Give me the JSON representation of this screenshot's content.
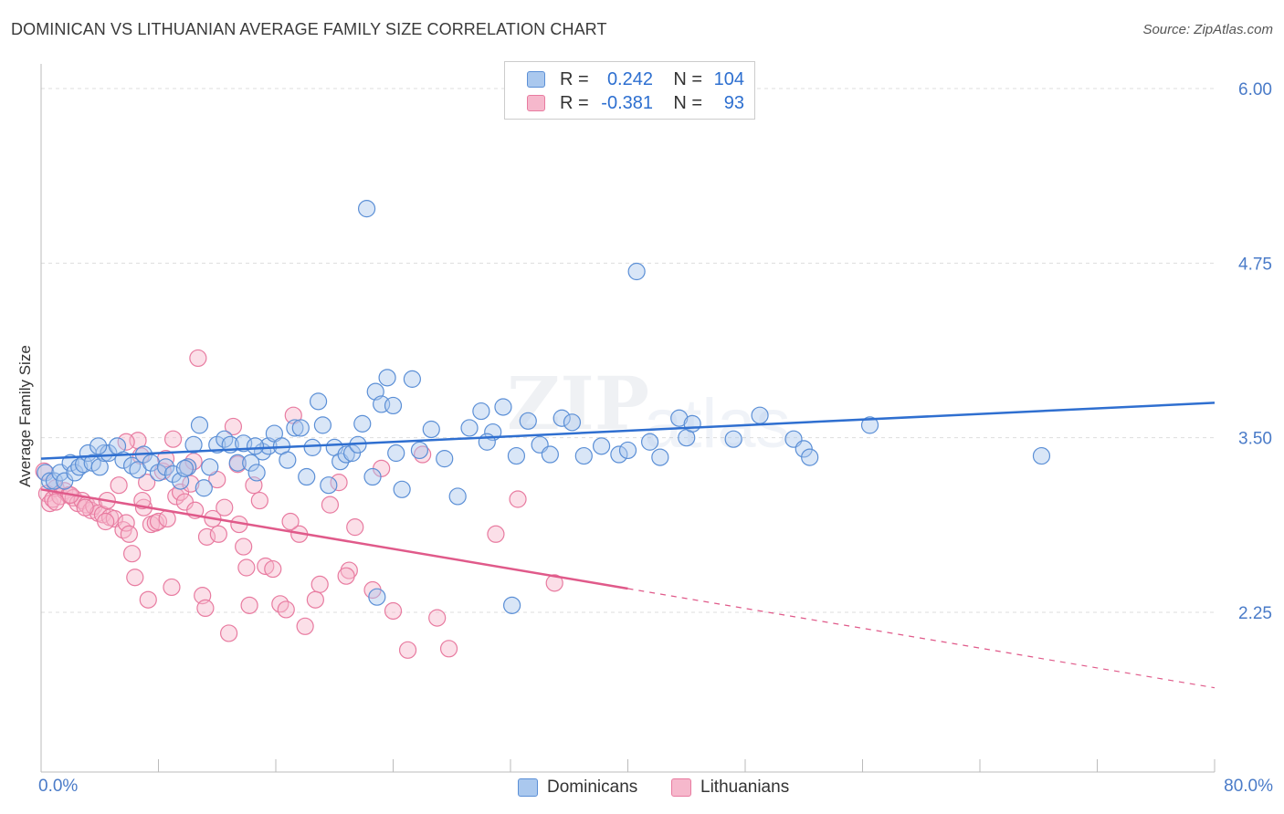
{
  "title": "DOMINICAN VS LITHUANIAN AVERAGE FAMILY SIZE CORRELATION CHART",
  "source": "Source: ZipAtlas.com",
  "colors": {
    "dominicans_fill": "#aac8ee",
    "dominicans_stroke": "#5b8fd6",
    "dominicans_line": "#2f6fd0",
    "lithuanians_fill": "#f6b8cc",
    "lithuanians_stroke": "#e87ba0",
    "lithuanians_line": "#e05a8a",
    "tick_label": "#4a7bc8"
  },
  "legend": {
    "rows": [
      {
        "r_label": "R =",
        "r_value": "0.242",
        "n_label": "N =",
        "n_value": "104"
      },
      {
        "r_label": "R =",
        "r_value": "-0.381",
        "n_label": "N =",
        "n_value": "93"
      }
    ]
  },
  "chart_data": {
    "type": "scatter",
    "title": "DOMINICAN VS LITHUANIAN AVERAGE FAMILY SIZE CORRELATION CHART",
    "xlabel": "",
    "ylabel": "Average Family Size",
    "x_tick_labels": [
      "0.0%",
      "80.0%"
    ],
    "y_tick_labels": [
      "2.25",
      "3.50",
      "4.75",
      "6.00"
    ],
    "y_ticks": [
      2.25,
      3.5,
      4.75,
      6.0
    ],
    "xlim": [
      0,
      80
    ],
    "ylim": [
      1.0,
      6.1
    ],
    "grid": true,
    "legend_position": "top-center",
    "series": [
      {
        "name": "Dominicans",
        "stats": {
          "R": 0.242,
          "N": 104
        },
        "trend": {
          "x0": 0,
          "y0": 3.35,
          "x1": 80,
          "y1": 3.75,
          "solid_until": 80
        },
        "points": [
          [
            0.3,
            3.25
          ],
          [
            0.6,
            3.19
          ],
          [
            0.9,
            3.19
          ],
          [
            1.3,
            3.25
          ],
          [
            1.6,
            3.19
          ],
          [
            2.0,
            3.32
          ],
          [
            2.3,
            3.25
          ],
          [
            2.6,
            3.29
          ],
          [
            2.9,
            3.31
          ],
          [
            3.2,
            3.39
          ],
          [
            3.5,
            3.32
          ],
          [
            4.0,
            3.29
          ],
          [
            4.3,
            3.39
          ],
          [
            4.6,
            3.39
          ],
          [
            5.2,
            3.44
          ],
          [
            5.6,
            3.34
          ],
          [
            6.2,
            3.3
          ],
          [
            6.6,
            3.27
          ],
          [
            7.0,
            3.38
          ],
          [
            7.5,
            3.32
          ],
          [
            8.0,
            3.25
          ],
          [
            8.5,
            3.29
          ],
          [
            9.0,
            3.24
          ],
          [
            9.5,
            3.19
          ],
          [
            10.0,
            3.29
          ],
          [
            10.4,
            3.45
          ],
          [
            10.8,
            3.59
          ],
          [
            11.1,
            3.14
          ],
          [
            11.5,
            3.29
          ],
          [
            12.0,
            3.45
          ],
          [
            12.5,
            3.49
          ],
          [
            12.9,
            3.45
          ],
          [
            13.4,
            3.32
          ],
          [
            13.8,
            3.46
          ],
          [
            14.3,
            3.32
          ],
          [
            14.7,
            3.25
          ],
          [
            15.1,
            3.4
          ],
          [
            15.5,
            3.44
          ],
          [
            15.9,
            3.53
          ],
          [
            16.4,
            3.44
          ],
          [
            16.8,
            3.34
          ],
          [
            17.3,
            3.57
          ],
          [
            17.7,
            3.57
          ],
          [
            18.1,
            3.22
          ],
          [
            18.5,
            3.43
          ],
          [
            18.9,
            3.76
          ],
          [
            19.2,
            3.59
          ],
          [
            19.6,
            3.16
          ],
          [
            20.0,
            3.43
          ],
          [
            20.4,
            3.33
          ],
          [
            20.8,
            3.38
          ],
          [
            21.2,
            3.39
          ],
          [
            21.6,
            3.45
          ],
          [
            21.9,
            3.6
          ],
          [
            22.2,
            5.14
          ],
          [
            22.6,
            3.22
          ],
          [
            22.8,
            3.83
          ],
          [
            23.2,
            3.74
          ],
          [
            23.6,
            3.93
          ],
          [
            24.0,
            3.73
          ],
          [
            24.6,
            3.13
          ],
          [
            25.3,
            3.92
          ],
          [
            25.8,
            3.41
          ],
          [
            26.6,
            3.56
          ],
          [
            27.5,
            3.35
          ],
          [
            28.4,
            3.08
          ],
          [
            29.2,
            3.57
          ],
          [
            30.0,
            3.69
          ],
          [
            30.8,
            3.54
          ],
          [
            31.5,
            3.72
          ],
          [
            32.4,
            3.37
          ],
          [
            33.2,
            3.62
          ],
          [
            34.0,
            3.45
          ],
          [
            34.7,
            3.38
          ],
          [
            35.5,
            3.64
          ],
          [
            36.2,
            3.61
          ],
          [
            37.0,
            3.37
          ],
          [
            38.2,
            3.44
          ],
          [
            39.4,
            3.38
          ],
          [
            40.0,
            3.41
          ],
          [
            40.6,
            4.69
          ],
          [
            41.5,
            3.47
          ],
          [
            42.2,
            3.36
          ],
          [
            43.5,
            3.64
          ],
          [
            44.0,
            3.5
          ],
          [
            44.4,
            3.6
          ],
          [
            47.2,
            3.49
          ],
          [
            49.0,
            3.66
          ],
          [
            51.3,
            3.49
          ],
          [
            52.0,
            3.42
          ],
          [
            52.4,
            3.36
          ],
          [
            56.5,
            3.59
          ],
          [
            68.2,
            3.37
          ],
          [
            14.6,
            3.44
          ],
          [
            9.8,
            3.28
          ],
          [
            22.9,
            2.36
          ],
          [
            32.1,
            2.3
          ],
          [
            30.4,
            3.47
          ],
          [
            24.2,
            3.39
          ],
          [
            3.9,
            3.44
          ]
        ]
      },
      {
        "name": "Lithuanians",
        "stats": {
          "R": -0.381,
          "N": 93
        },
        "trend": {
          "x0": 0,
          "y0": 3.13,
          "x1": 80,
          "y1": 1.71,
          "solid_until": 40
        },
        "points": [
          [
            0.2,
            3.26
          ],
          [
            0.4,
            3.1
          ],
          [
            0.6,
            3.03
          ],
          [
            0.8,
            3.06
          ],
          [
            1.0,
            3.14
          ],
          [
            1.3,
            3.08
          ],
          [
            1.6,
            3.12
          ],
          [
            1.9,
            3.09
          ],
          [
            2.2,
            3.07
          ],
          [
            2.5,
            3.03
          ],
          [
            2.8,
            3.05
          ],
          [
            3.1,
            3.02
          ],
          [
            3.4,
            2.98
          ],
          [
            3.6,
            3.01
          ],
          [
            3.9,
            2.96
          ],
          [
            4.2,
            2.95
          ],
          [
            4.5,
            3.05
          ],
          [
            4.7,
            2.93
          ],
          [
            5.0,
            2.92
          ],
          [
            5.3,
            3.16
          ],
          [
            5.6,
            2.84
          ],
          [
            5.8,
            2.89
          ],
          [
            6.0,
            2.81
          ],
          [
            6.2,
            2.67
          ],
          [
            6.4,
            2.5
          ],
          [
            6.6,
            3.48
          ],
          [
            6.8,
            3.37
          ],
          [
            7.0,
            3.0
          ],
          [
            7.2,
            3.18
          ],
          [
            7.5,
            2.88
          ],
          [
            7.8,
            2.89
          ],
          [
            8.0,
            2.9
          ],
          [
            8.3,
            3.26
          ],
          [
            8.6,
            2.92
          ],
          [
            8.9,
            2.43
          ],
          [
            9.2,
            3.08
          ],
          [
            9.5,
            3.11
          ],
          [
            9.8,
            3.04
          ],
          [
            10.0,
            3.29
          ],
          [
            10.2,
            3.17
          ],
          [
            10.4,
            3.33
          ],
          [
            10.7,
            4.07
          ],
          [
            11.0,
            2.37
          ],
          [
            11.3,
            2.79
          ],
          [
            11.7,
            2.92
          ],
          [
            12.1,
            2.81
          ],
          [
            12.5,
            3.0
          ],
          [
            12.8,
            2.1
          ],
          [
            13.1,
            3.58
          ],
          [
            13.4,
            3.31
          ],
          [
            13.8,
            2.72
          ],
          [
            14.2,
            2.3
          ],
          [
            14.5,
            3.16
          ],
          [
            14.9,
            3.05
          ],
          [
            15.3,
            2.58
          ],
          [
            15.8,
            2.56
          ],
          [
            16.3,
            2.31
          ],
          [
            16.7,
            2.27
          ],
          [
            17.2,
            3.66
          ],
          [
            17.6,
            2.81
          ],
          [
            18.0,
            2.15
          ],
          [
            19.0,
            2.45
          ],
          [
            19.7,
            3.02
          ],
          [
            20.3,
            3.18
          ],
          [
            21.0,
            2.55
          ],
          [
            21.4,
            2.86
          ],
          [
            22.6,
            2.41
          ],
          [
            23.2,
            3.28
          ],
          [
            24.0,
            2.26
          ],
          [
            25.0,
            1.98
          ],
          [
            26.0,
            3.38
          ],
          [
            27.0,
            2.21
          ],
          [
            27.8,
            1.99
          ],
          [
            31.0,
            2.81
          ],
          [
            32.5,
            3.06
          ],
          [
            35.0,
            2.46
          ],
          [
            9.0,
            3.49
          ],
          [
            8.5,
            3.35
          ],
          [
            5.8,
            3.47
          ],
          [
            11.2,
            2.28
          ],
          [
            7.3,
            2.34
          ],
          [
            12.0,
            3.2
          ],
          [
            3.0,
            3.0
          ],
          [
            2.0,
            3.09
          ],
          [
            1.0,
            3.04
          ],
          [
            4.4,
            2.9
          ],
          [
            6.9,
            3.05
          ],
          [
            13.5,
            2.88
          ],
          [
            17.0,
            2.9
          ],
          [
            18.7,
            2.34
          ],
          [
            20.8,
            2.51
          ],
          [
            14.0,
            2.57
          ],
          [
            10.5,
            2.98
          ]
        ]
      }
    ]
  },
  "x_axis": {
    "left_label": "0.0%",
    "right_label": "80.0%"
  },
  "bottom_legend": {
    "dominicans": "Dominicans",
    "lithuanians": "Lithuanians"
  }
}
